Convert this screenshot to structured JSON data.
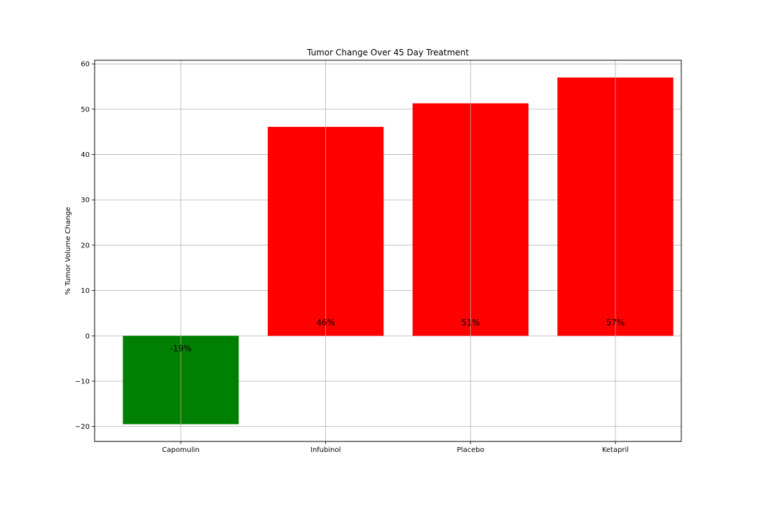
{
  "chart_data": {
    "type": "bar",
    "title": "Tumor Change Over 45 Day Treatment",
    "xlabel": "",
    "ylabel": "% Tumor Volume Change",
    "categories": [
      "Capomulin",
      "Infubinol",
      "Placebo",
      "Ketapril"
    ],
    "values": [
      -19.5,
      46.1,
      51.3,
      57.0
    ],
    "data_labels": [
      "-19%",
      "46%",
      "51%",
      "57%"
    ],
    "bar_colors": [
      "#008000",
      "#ff0000",
      "#ff0000",
      "#ff0000"
    ],
    "ylim": [
      -23.3,
      60.8
    ],
    "yticks": [
      -20,
      -10,
      0,
      10,
      20,
      30,
      40,
      50,
      60
    ],
    "ytick_labels": [
      "−20",
      "−10",
      "0",
      "10",
      "20",
      "30",
      "40",
      "50",
      "60"
    ],
    "grid": true
  }
}
